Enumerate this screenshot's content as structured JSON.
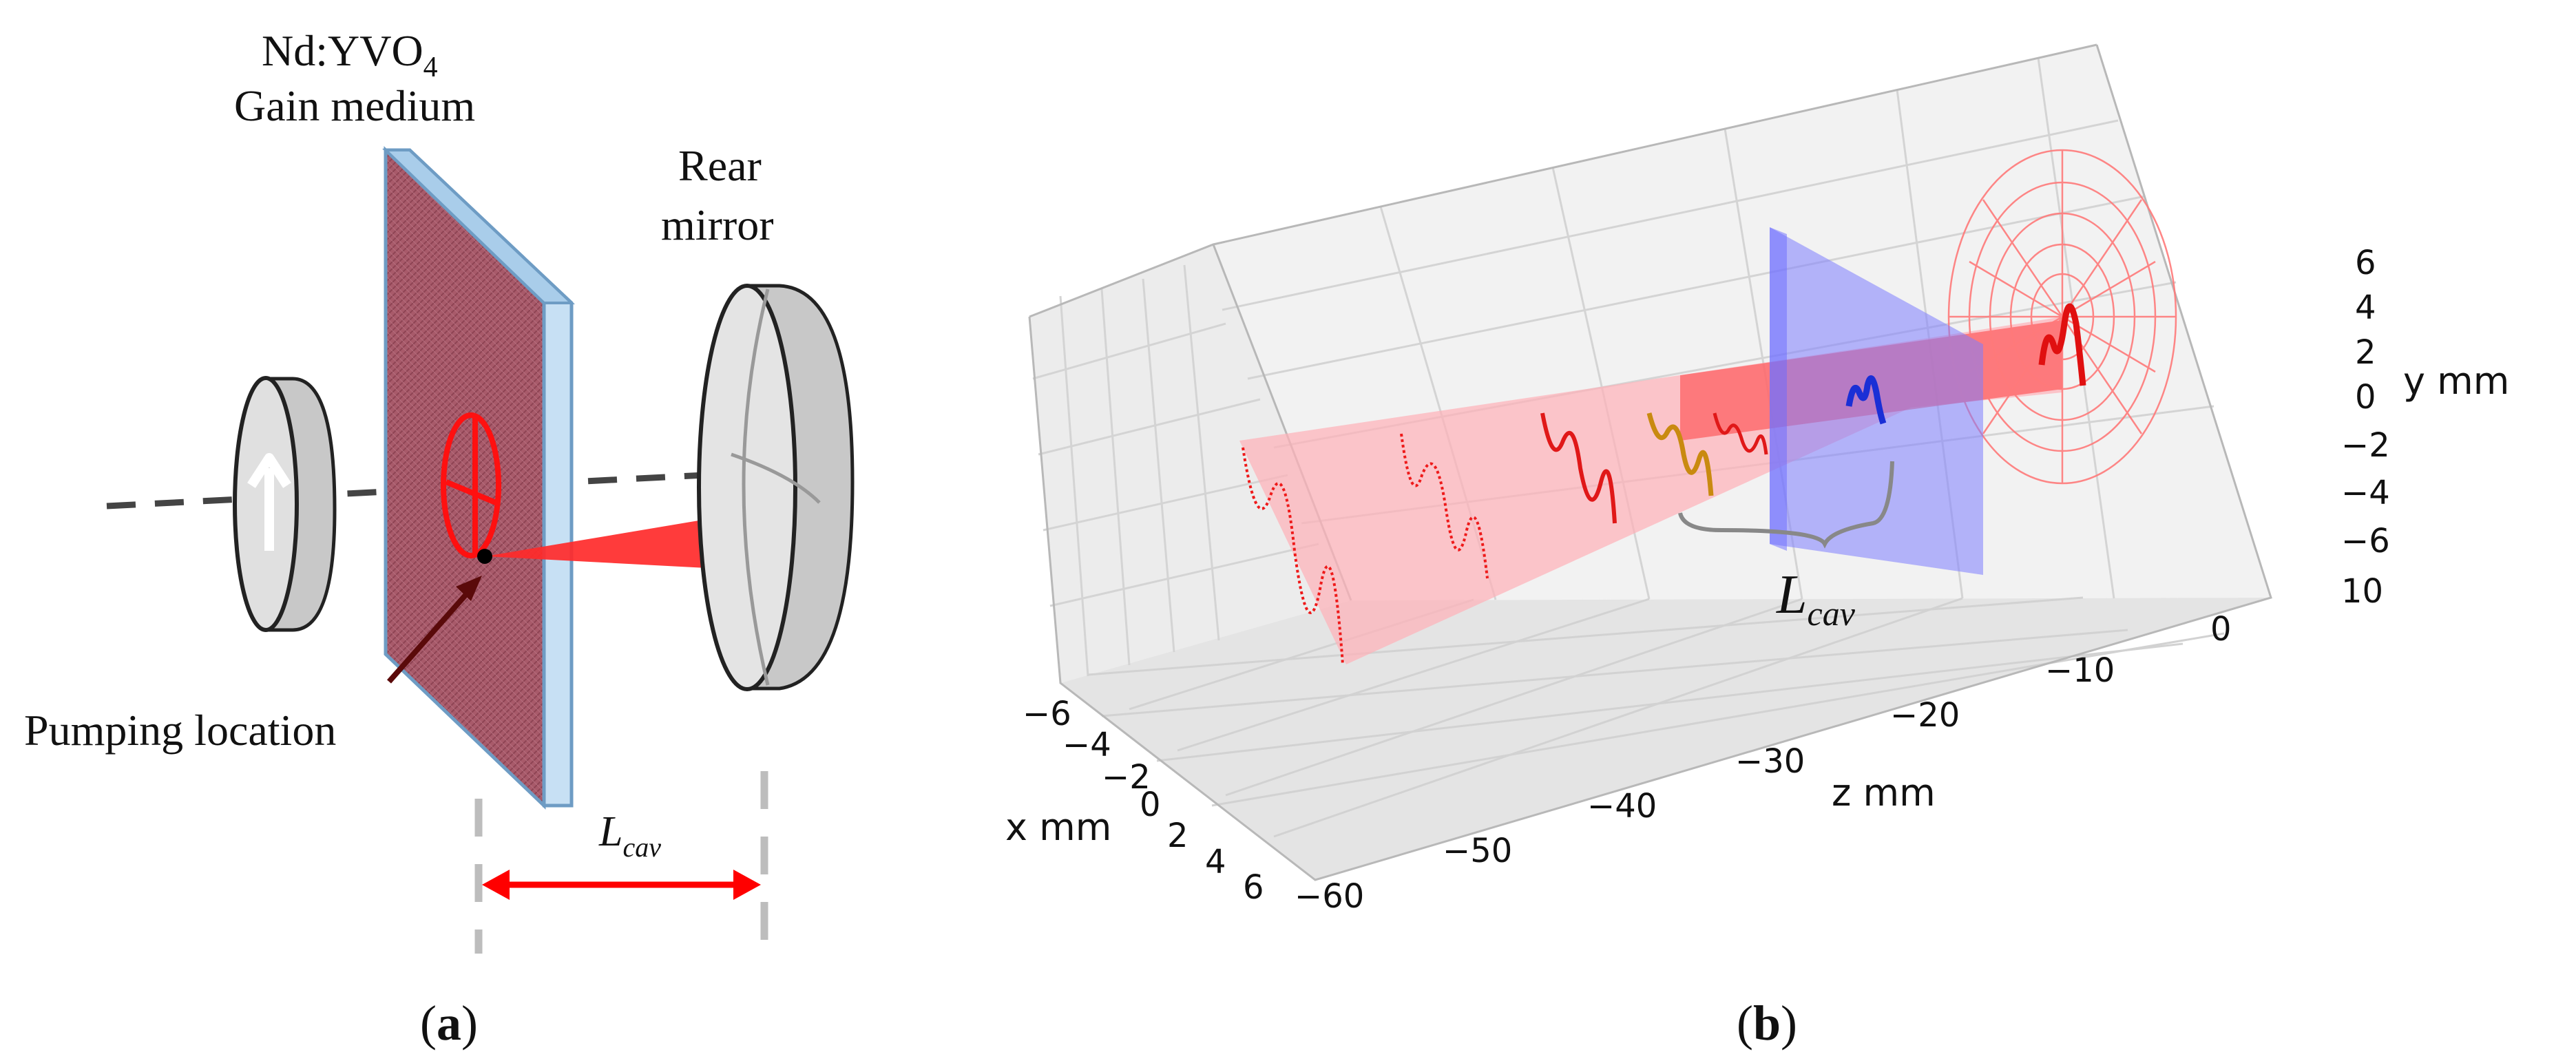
{
  "panel_a": {
    "gain_medium_formula_main": "Nd:YVO",
    "gain_medium_formula_sub": "4",
    "gain_medium_label": "Gain medium",
    "rear_mirror_line1": "Rear",
    "rear_mirror_line2": "mirror",
    "pumping_label": "Pumping location",
    "lcav_main": "L",
    "lcav_sub": "cav",
    "caption_open": "(",
    "caption_letter": "a",
    "caption_close": ")"
  },
  "panel_b": {
    "lcav_main": "L",
    "lcav_sub": "cav",
    "caption_open": "(",
    "caption_letter": "b",
    "caption_close": ")"
  },
  "chart_data": {
    "type": "3d-line",
    "axes": {
      "x": {
        "label": "x mm",
        "ticks": [
          "−6",
          "−4",
          "−2",
          "0",
          "2",
          "4",
          "6"
        ]
      },
      "y": {
        "label": "y mm",
        "ticks": [
          "6",
          "4",
          "2",
          "0",
          "−2",
          "−4",
          "−6"
        ]
      },
      "z": {
        "label": "z mm",
        "ticks": [
          "−60",
          "−50",
          "−40",
          "−30",
          "−20",
          "−10",
          "0",
          "10"
        ]
      }
    },
    "annotation": "L_cav",
    "grid": true
  },
  "colors": {
    "beam": "#ff2020",
    "beam_fill": "#ffb0b8",
    "plane": "#7d7dff",
    "blue_wave": "#1a2fd6",
    "orange_wave": "#c98a10",
    "crystal_face": "#a85a6a",
    "crystal_edge": "#b6d6ef",
    "mirror": "#e6e6e6"
  }
}
